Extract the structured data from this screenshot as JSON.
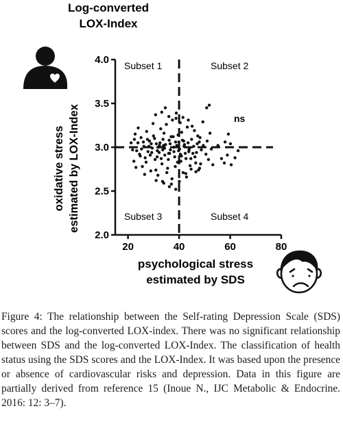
{
  "chart_data": {
    "type": "scatter",
    "title_lines": [
      "Log-converted",
      "LOX-Index"
    ],
    "xlabel_lines": [
      "psychological stress",
      "estimated by SDS"
    ],
    "ylabel_lines": [
      "oxidative stress",
      "estimated by LOX-Index"
    ],
    "xlim": [
      15,
      80
    ],
    "ylim": [
      2.0,
      4.0
    ],
    "xticks": [
      20,
      40,
      60,
      80
    ],
    "yticks": [
      2.0,
      2.5,
      3.0,
      3.5,
      4.0
    ],
    "ytick_labels": [
      "2.0",
      "2.5",
      "3.0",
      "3.5",
      "4.0"
    ],
    "cutoff_x": 40,
    "cutoff_y": 3.0,
    "subsets": [
      "Subset 1",
      "Subset 2",
      "Subset 3",
      "Subset 4"
    ],
    "significance": "ns",
    "points": [
      [
        22.3,
        2.84
      ],
      [
        22.8,
        3.15
      ],
      [
        23.4,
        2.96
      ],
      [
        23.9,
        3.05
      ],
      [
        24.5,
        2.92
      ],
      [
        25.1,
        3.11
      ],
      [
        25.6,
        2.78
      ],
      [
        26.2,
        3.01
      ],
      [
        26.7,
        2.88
      ],
      [
        27.3,
        3.18
      ],
      [
        27.8,
        2.95
      ],
      [
        28.4,
        3.07
      ],
      [
        28.9,
        2.73
      ],
      [
        29.5,
        2.99
      ],
      [
        30.0,
        3.13
      ],
      [
        30.6,
        2.86
      ],
      [
        31.1,
        3.04
      ],
      [
        31.7,
        2.68
      ],
      [
        32.2,
        2.94
      ],
      [
        32.8,
        3.21
      ],
      [
        33.3,
        2.81
      ],
      [
        33.9,
        3.02
      ],
      [
        34.4,
        2.91
      ],
      [
        35.0,
        3.26
      ],
      [
        35.5,
        2.76
      ],
      [
        36.1,
        3.08
      ],
      [
        36.6,
        2.97
      ],
      [
        37.2,
        2.64
      ],
      [
        37.7,
        3.12
      ],
      [
        38.3,
        2.89
      ],
      [
        38.8,
        3.33
      ],
      [
        39.4,
        2.83
      ],
      [
        39.9,
        3.06
      ],
      [
        40.5,
        2.92
      ],
      [
        41.0,
        3.17
      ],
      [
        41.6,
        2.71
      ],
      [
        42.1,
        3.03
      ],
      [
        42.7,
        2.87
      ],
      [
        43.2,
        3.23
      ],
      [
        43.8,
        2.95
      ],
      [
        44.3,
        2.79
      ],
      [
        44.9,
        3.09
      ],
      [
        45.4,
        2.93
      ],
      [
        46.0,
        3.19
      ],
      [
        46.5,
        2.82
      ],
      [
        47.1,
        3.04
      ],
      [
        47.6,
        2.74
      ],
      [
        48.2,
        3.11
      ],
      [
        48.7,
        2.97
      ],
      [
        49.3,
        3.29
      ],
      [
        23.1,
        2.77
      ],
      [
        24.0,
        3.22
      ],
      [
        25.3,
        2.98
      ],
      [
        26.5,
        2.69
      ],
      [
        27.6,
        3.09
      ],
      [
        28.7,
        2.91
      ],
      [
        29.8,
        3.27
      ],
      [
        30.9,
        2.74
      ],
      [
        31.9,
        3.0
      ],
      [
        33.0,
        2.87
      ],
      [
        34.1,
        3.16
      ],
      [
        35.2,
        2.71
      ],
      [
        36.3,
        2.93
      ],
      [
        37.4,
        3.31
      ],
      [
        38.5,
        2.78
      ],
      [
        39.6,
        3.14
      ],
      [
        40.7,
        2.84
      ],
      [
        41.8,
        3.07
      ],
      [
        42.9,
        2.66
      ],
      [
        44.0,
        2.99
      ],
      [
        45.1,
        3.24
      ],
      [
        46.2,
        2.89
      ],
      [
        47.3,
        3.13
      ],
      [
        48.4,
        2.81
      ],
      [
        49.5,
        3.02
      ],
      [
        24.8,
        2.9
      ],
      [
        26.0,
        3.06
      ],
      [
        27.1,
        2.83
      ],
      [
        28.2,
        3.01
      ],
      [
        29.3,
        2.94
      ],
      [
        30.4,
        3.1
      ],
      [
        31.4,
        2.89
      ],
      [
        32.5,
        3.05
      ],
      [
        33.6,
        2.97
      ],
      [
        34.7,
        3.03
      ],
      [
        35.8,
        2.86
      ],
      [
        36.9,
        3.12
      ],
      [
        38.0,
        2.95
      ],
      [
        39.1,
        3.02
      ],
      [
        40.2,
        2.98
      ],
      [
        41.3,
        3.08
      ],
      [
        42.4,
        2.93
      ],
      [
        43.5,
        3.05
      ],
      [
        44.6,
        2.87
      ],
      [
        45.7,
        3.01
      ],
      [
        46.8,
        2.94
      ],
      [
        47.9,
        3.06
      ],
      [
        31.5,
        2.96
      ],
      [
        33.7,
        3.09
      ],
      [
        35.9,
        2.93
      ],
      [
        37.9,
        3.0
      ],
      [
        39.8,
        2.96
      ],
      [
        41.9,
        3.01
      ],
      [
        43.9,
        2.97
      ],
      [
        36.5,
        3.04
      ],
      [
        34.3,
        2.99
      ],
      [
        38.6,
        3.06
      ],
      [
        40.9,
        2.9
      ],
      [
        32.3,
        3.02
      ],
      [
        29.1,
        3.04
      ],
      [
        21.2,
        3.05
      ],
      [
        21.8,
        2.97
      ],
      [
        22.5,
        3.09
      ],
      [
        34.0,
        2.59
      ],
      [
        36.2,
        2.55
      ],
      [
        38.7,
        2.52
      ],
      [
        31.0,
        2.62
      ],
      [
        33.5,
        2.61
      ],
      [
        37.0,
        2.58
      ],
      [
        40.1,
        2.61
      ],
      [
        30.8,
        3.37
      ],
      [
        33.2,
        3.4
      ],
      [
        36.0,
        3.35
      ],
      [
        38.9,
        3.39
      ],
      [
        41.5,
        3.34
      ],
      [
        34.6,
        3.45
      ],
      [
        40.4,
        3.28
      ],
      [
        43.6,
        3.31
      ],
      [
        42.6,
        2.7
      ],
      [
        44.7,
        2.75
      ],
      [
        46.6,
        2.72
      ],
      [
        48.0,
        2.76
      ],
      [
        50.5,
        2.92
      ],
      [
        51.0,
        3.07
      ],
      [
        51.5,
        2.86
      ],
      [
        52.1,
        3.16
      ],
      [
        52.6,
        2.98
      ],
      [
        53.2,
        2.8
      ],
      [
        50.8,
        3.45
      ],
      [
        51.8,
        3.48
      ],
      [
        55.2,
        3.02
      ],
      [
        56.6,
        2.87
      ],
      [
        57.7,
        2.82
      ],
      [
        58.0,
        3.06
      ],
      [
        58.9,
        2.91
      ],
      [
        59.3,
        3.15
      ],
      [
        60.1,
        3.04
      ],
      [
        60.4,
        2.8
      ],
      [
        61.9,
        2.88
      ],
      [
        63.1,
        2.96
      ]
    ]
  },
  "caption": {
    "lead": "Figure 4:",
    "text": " The relationship between the Self-rating Depression Scale (SDS) scores and the log-converted LOX-index. There was no significant relationship between SDS and the log-converted LOX-Index. The classification of health status using the SDS scores and the LOX-Index. It was based upon the presence or absence of cardiovascular risks and depression. Data in this figure are partially derived from reference 15 (Inoue N., IJC Metabolic & Endocrine. 2016: 12: 3–7)."
  },
  "icons": {
    "top_left": "mother-and-heart-icon",
    "bottom_right": "worried-face-icon"
  }
}
